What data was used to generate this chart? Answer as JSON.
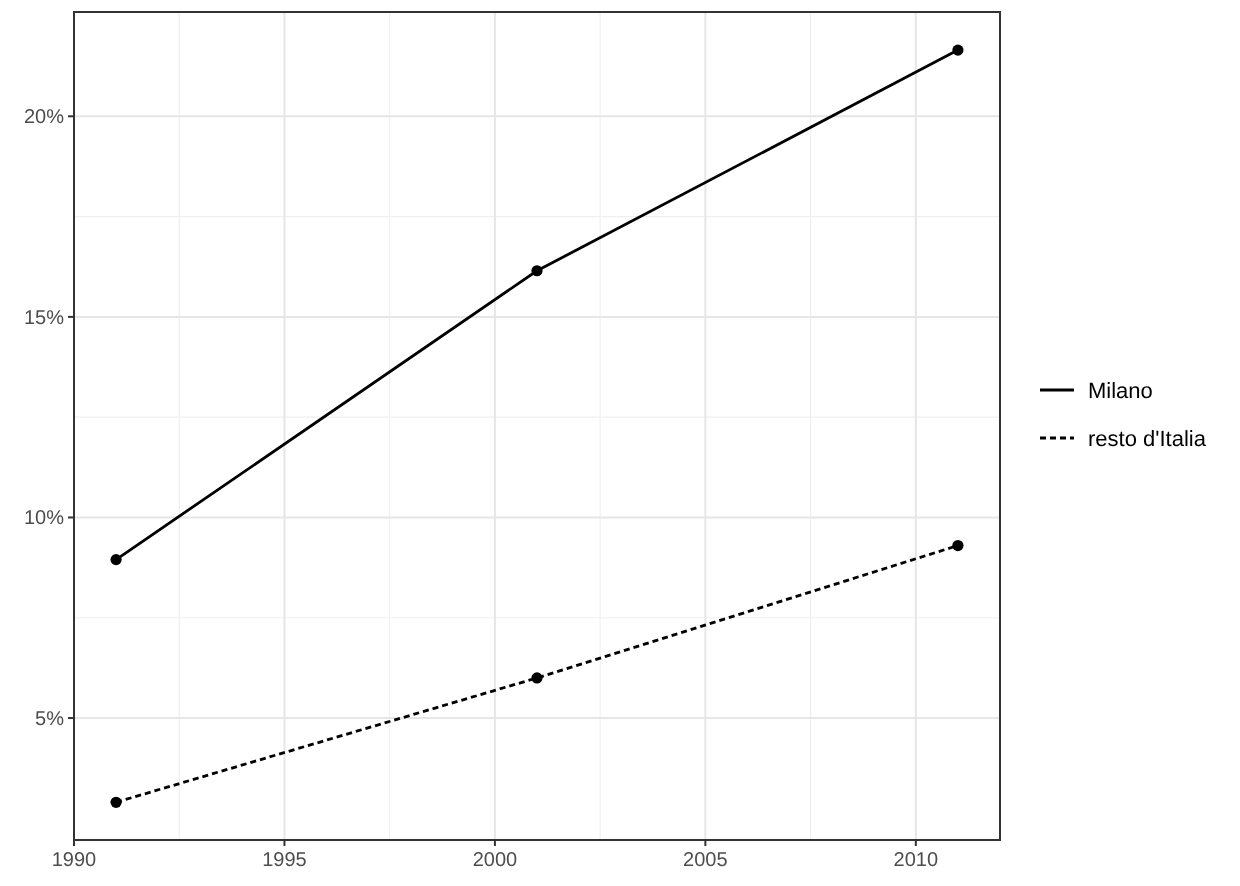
{
  "chart_data": {
    "type": "line",
    "x": [
      1991,
      2001,
      2011
    ],
    "series": [
      {
        "name": "Milano",
        "color": "#000000",
        "values": [
          8.95,
          16.15,
          21.65
        ],
        "line_style": "solid"
      },
      {
        "name": "resto d'Italia",
        "color": "#000000",
        "values": [
          2.9,
          6.0,
          9.3
        ],
        "line_style": "dashed"
      }
    ],
    "xlim": [
      1990,
      2012
    ],
    "xticks": [
      1990,
      1995,
      2000,
      2005,
      2010
    ],
    "ylim": [
      1.96,
      22.6
    ],
    "yticks": [
      {
        "value": 5,
        "label": "5%"
      },
      {
        "value": 10,
        "label": "10%"
      },
      {
        "value": 15,
        "label": "15%"
      },
      {
        "value": 20,
        "label": "20%"
      }
    ],
    "grid": true,
    "legend": "right",
    "marker": "circle"
  }
}
